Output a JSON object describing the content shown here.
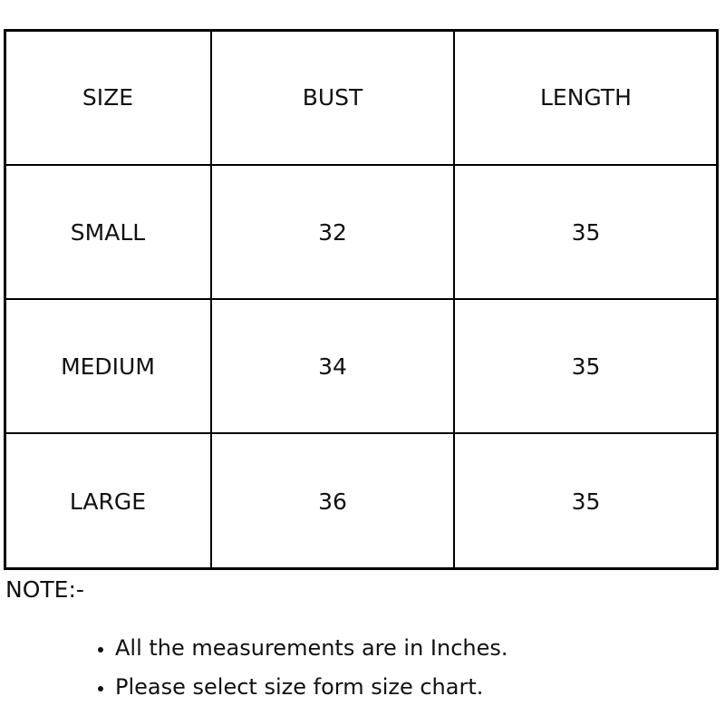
{
  "table": {
    "header": [
      "SIZE",
      "BUST",
      "LENGTH"
    ],
    "rows": [
      [
        "SMALL",
        32,
        35
      ],
      [
        "MEDIUM",
        34,
        35
      ],
      [
        "LARGE",
        36,
        35
      ]
    ]
  },
  "note": {
    "title": "NOTE:-",
    "items": [
      "All the measurements are in Inches.",
      "Please select size form size chart."
    ]
  }
}
